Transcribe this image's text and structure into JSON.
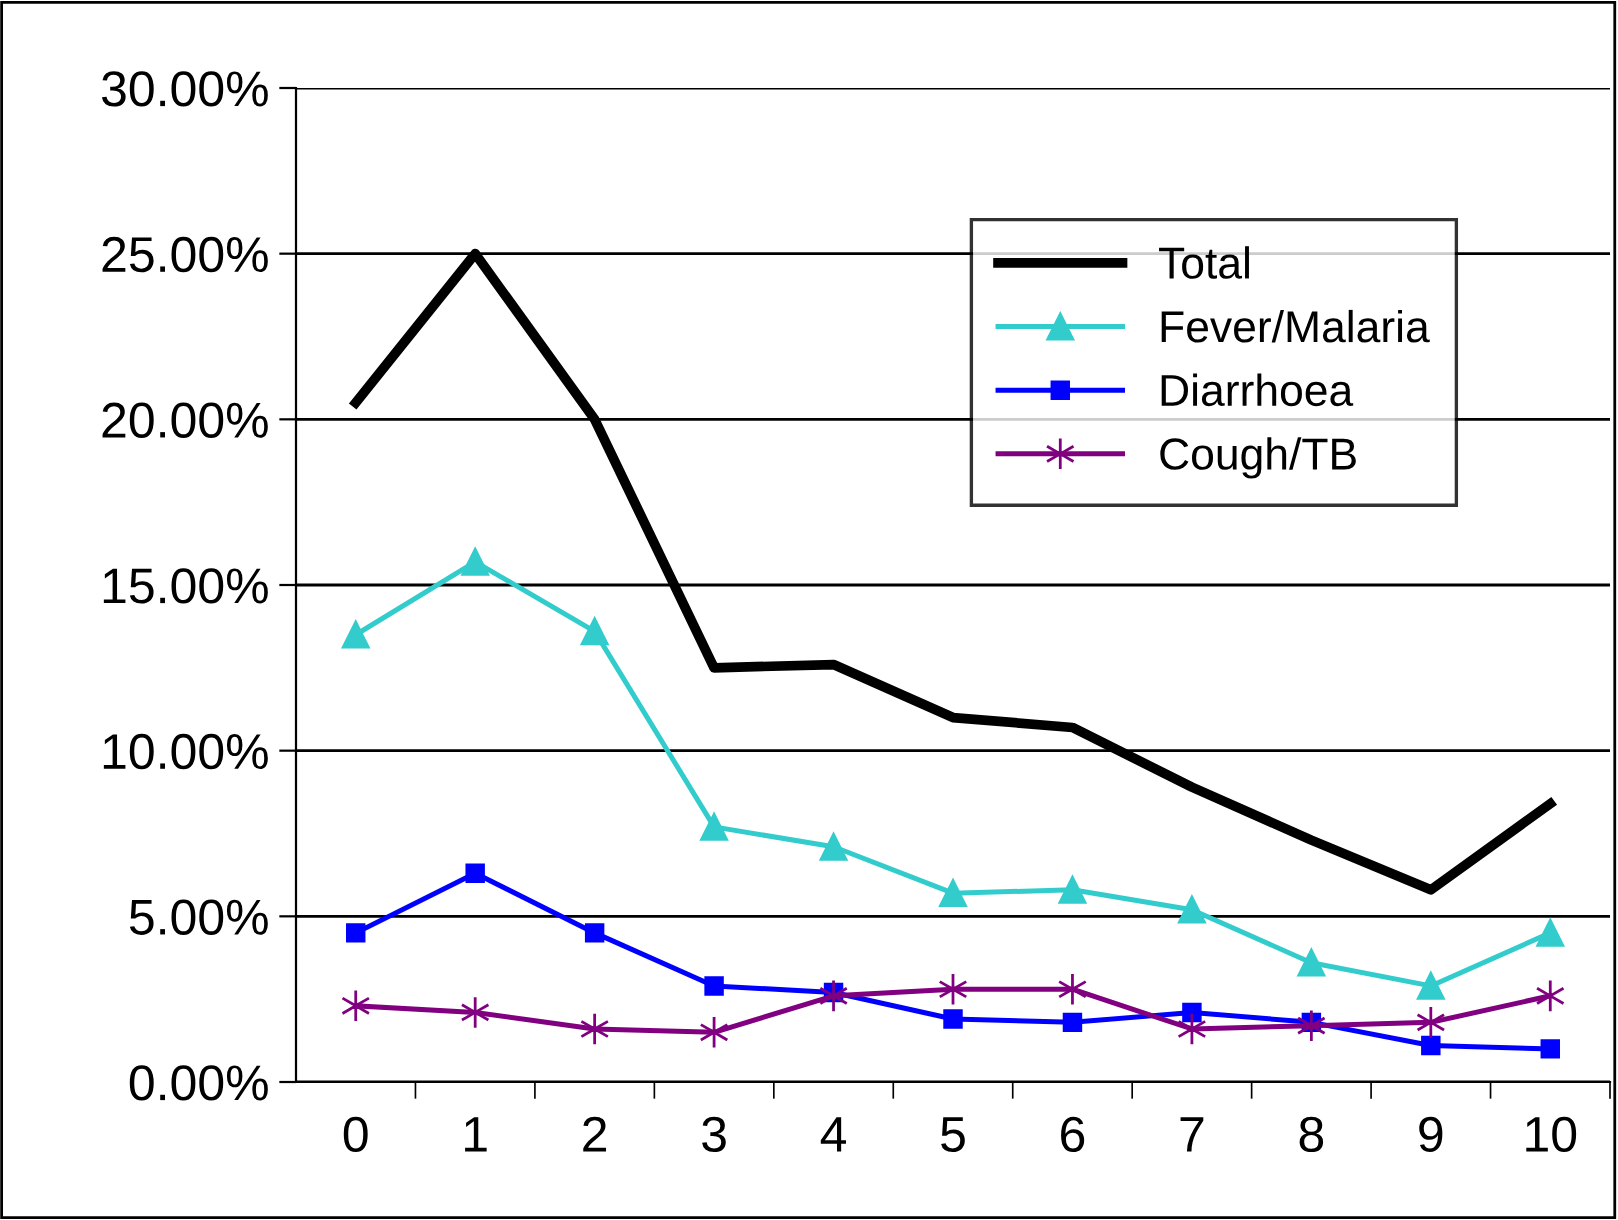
{
  "chart_data": {
    "type": "line",
    "categories": [
      "0",
      "1",
      "2",
      "3",
      "4",
      "5",
      "6",
      "7",
      "8",
      "9",
      "10"
    ],
    "series": [
      {
        "name": "Total",
        "color": "#000000",
        "marker": "none",
        "values": [
          20.5,
          25.0,
          20.0,
          12.5,
          12.6,
          11.0,
          10.7,
          8.9,
          7.3,
          5.8,
          8.4
        ]
      },
      {
        "name": "Fever/Malaria",
        "color": "#33cccc",
        "marker": "triangle",
        "values": [
          13.5,
          15.7,
          13.6,
          7.7,
          7.1,
          5.7,
          5.8,
          5.2,
          3.6,
          2.9,
          4.5
        ]
      },
      {
        "name": "Diarrhoea",
        "color": "#0000ff",
        "marker": "square",
        "values": [
          4.5,
          6.3,
          4.5,
          2.9,
          2.7,
          1.9,
          1.8,
          2.1,
          1.8,
          1.1,
          1.0
        ]
      },
      {
        "name": "Cough/TB",
        "color": "#800080",
        "marker": "cross",
        "values": [
          2.3,
          2.1,
          1.6,
          1.5,
          2.6,
          2.8,
          2.8,
          1.6,
          1.7,
          1.8,
          2.6
        ]
      }
    ],
    "ylim": [
      0,
      30
    ],
    "yticks": [
      {
        "value": 0,
        "label": "0.00%"
      },
      {
        "value": 5,
        "label": "5.00%"
      },
      {
        "value": 10,
        "label": "10.00%"
      },
      {
        "value": 15,
        "label": "15.00%"
      },
      {
        "value": 20,
        "label": "20.00%"
      },
      {
        "value": 25,
        "label": "25.00%"
      },
      {
        "value": 30,
        "label": "30.00%"
      }
    ],
    "grid": "y",
    "legend": "top right",
    "line_style": "solid"
  }
}
